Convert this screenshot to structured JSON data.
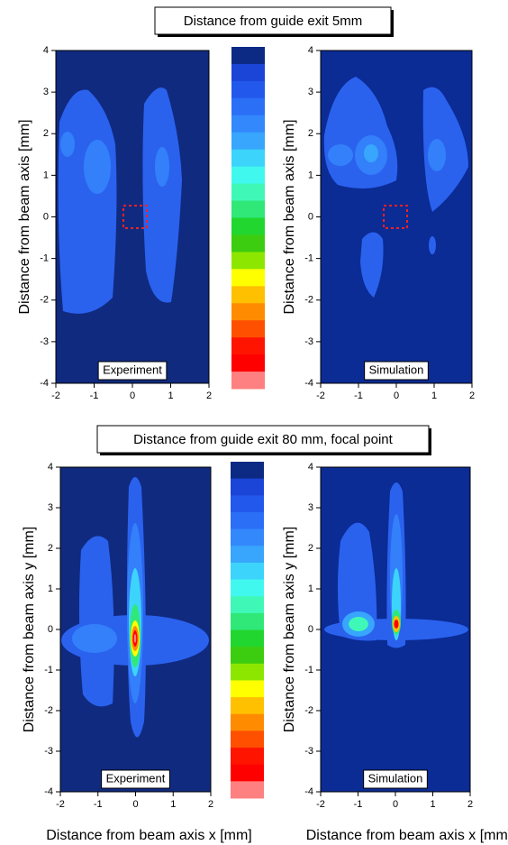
{
  "headings": [
    "Distance from guide exit 5mm",
    "Distance from guide exit 80 mm, focal point"
  ],
  "colorbar": {
    "colors": [
      "#0c2a84",
      "#1b45d6",
      "#2259ec",
      "#2b6ff6",
      "#3388fb",
      "#37a6fc",
      "#3cd4fb",
      "#41f8ee",
      "#3ff8b8",
      "#2fe878",
      "#22d630",
      "#3ccc10",
      "#8ce600",
      "#ffff00",
      "#ffc000",
      "#ff8c00",
      "#ff5000",
      "#ff1400",
      "#ff0000",
      "#ff8080"
    ]
  },
  "chart_data": [
    {
      "type": "contour",
      "ylabel": "Distance from beam axis [mm]",
      "annotation": "Experiment",
      "xlim": [
        -2,
        2
      ],
      "ylim": [
        -4,
        4
      ],
      "xticks": [
        -2,
        -1,
        0,
        1,
        2
      ],
      "yticks": [
        -4,
        -3,
        -2,
        -1,
        0,
        1,
        2,
        3,
        4
      ]
    },
    {
      "type": "contour",
      "ylabel": "Distance from beam axis [mm]",
      "annotation": "Simulation",
      "xlim": [
        -2,
        2
      ],
      "ylim": [
        -4,
        4
      ],
      "xticks": [
        -2,
        -1,
        0,
        1,
        2
      ],
      "yticks": [
        -4,
        -3,
        -2,
        -1,
        0,
        1,
        2,
        3,
        4
      ]
    },
    {
      "type": "contour",
      "ylabel": "Distance from beam axis y [mm]",
      "xlabel": "Distance from beam axis x [mm]",
      "annotation": "Experiment",
      "xlim": [
        -2,
        2
      ],
      "ylim": [
        -4,
        4
      ],
      "xticks": [
        -2,
        -1,
        0,
        1,
        2
      ],
      "yticks": [
        -4,
        -3,
        -2,
        -1,
        0,
        1,
        2,
        3,
        4
      ]
    },
    {
      "type": "contour",
      "ylabel": "Distance from beam axis y [mm]",
      "xlabel": "Distance from beam axis x [mm]",
      "annotation": "Simulation",
      "xlim": [
        -2,
        2
      ],
      "ylim": [
        -4,
        4
      ],
      "xticks": [
        -2,
        -1,
        0,
        1,
        2
      ],
      "yticks": [
        -4,
        -3,
        -2,
        -1,
        0,
        1,
        2,
        3,
        4
      ]
    }
  ]
}
